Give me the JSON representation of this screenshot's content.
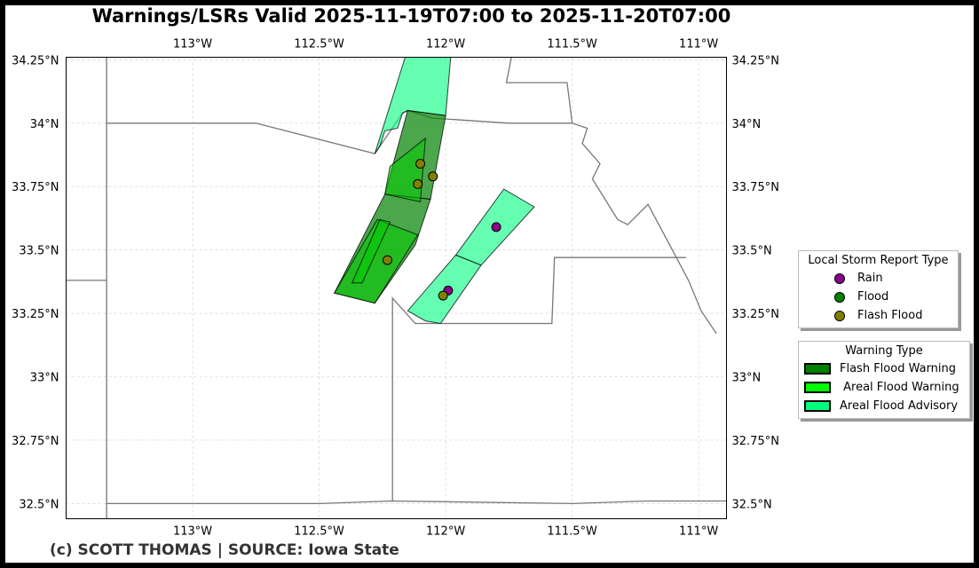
{
  "title": "Warnings/LSRs Valid 2025-11-19T07:00 to 2025-11-20T07:00",
  "credit": "(c) SCOTT THOMAS | SOURCE: Iowa State",
  "map": {
    "lon_ticks": [
      {
        "lon": -113.0,
        "label": "113°W"
      },
      {
        "lon": -112.5,
        "label": "112.5°W"
      },
      {
        "lon": -112.0,
        "label": "112°W"
      },
      {
        "lon": -111.5,
        "label": "111.5°W"
      },
      {
        "lon": -111.0,
        "label": "111°W"
      }
    ],
    "lat_ticks": [
      {
        "lat": 34.25,
        "label": "34.25°N"
      },
      {
        "lat": 34.0,
        "label": "34°N"
      },
      {
        "lat": 33.75,
        "label": "33.75°N"
      },
      {
        "lat": 33.5,
        "label": "33.5°N"
      },
      {
        "lat": 33.25,
        "label": "33.25°N"
      },
      {
        "lat": 33.0,
        "label": "33°N"
      },
      {
        "lat": 32.75,
        "label": "32.75°N"
      },
      {
        "lat": 32.5,
        "label": "32.5°N"
      }
    ],
    "extent": {
      "lon_min": -113.5,
      "lon_max": -110.89,
      "lat_min": 32.44,
      "lat_max": 34.26
    },
    "gridlines": true,
    "boundaries": [
      [
        [
          -113.34,
          34.26
        ],
        [
          -113.34,
          32.44
        ]
      ],
      [
        [
          -113.5,
          33.38
        ],
        [
          -113.34,
          33.38
        ]
      ],
      [
        [
          -113.34,
          34.0
        ],
        [
          -112.75,
          34.0
        ],
        [
          -112.28,
          33.88
        ],
        [
          -112.17,
          34.04
        ],
        [
          -112.15,
          34.05
        ],
        [
          -112.05,
          34.02
        ],
        [
          -111.75,
          34.0
        ],
        [
          -111.5,
          34.0
        ],
        [
          -111.44,
          33.98
        ],
        [
          -111.46,
          33.92
        ],
        [
          -111.39,
          33.84
        ],
        [
          -111.42,
          33.78
        ],
        [
          -111.32,
          33.62
        ],
        [
          -111.28,
          33.6
        ],
        [
          -111.2,
          33.68
        ],
        [
          -111.04,
          33.38
        ],
        [
          -110.99,
          33.26
        ],
        [
          -110.93,
          33.17
        ]
      ],
      [
        [
          -111.74,
          34.26
        ],
        [
          -111.76,
          34.16
        ],
        [
          -111.52,
          34.16
        ],
        [
          -111.51,
          34.08
        ],
        [
          -111.5,
          34.0
        ]
      ],
      [
        [
          -113.34,
          32.5
        ],
        [
          -112.5,
          32.5
        ],
        [
          -112.21,
          32.51
        ],
        [
          -111.5,
          32.5
        ],
        [
          -111.2,
          32.51
        ],
        [
          -110.89,
          32.51
        ]
      ],
      [
        [
          -112.21,
          32.51
        ],
        [
          -112.21,
          33.31
        ],
        [
          -112.12,
          33.21
        ],
        [
          -111.58,
          33.21
        ],
        [
          -111.57,
          33.47
        ],
        [
          -111.05,
          33.47
        ]
      ]
    ],
    "polygons": [
      {
        "type": "Areal Flood Advisory",
        "points": [
          [
            -112.16,
            34.26
          ],
          [
            -111.98,
            34.26
          ],
          [
            -112.0,
            34.03
          ],
          [
            -112.15,
            34.05
          ],
          [
            -112.17,
            34.04
          ],
          [
            -112.19,
            33.98
          ],
          [
            -112.24,
            33.97
          ],
          [
            -112.26,
            33.91
          ],
          [
            -112.28,
            33.88
          ]
        ]
      },
      {
        "type": "Flash Flood Warning",
        "points": [
          [
            -112.15,
            34.05
          ],
          [
            -112.0,
            34.03
          ],
          [
            -112.06,
            33.7
          ],
          [
            -112.24,
            33.72
          ]
        ]
      },
      {
        "type": "Flash Flood Warning",
        "points": [
          [
            -112.24,
            33.72
          ],
          [
            -112.06,
            33.7
          ],
          [
            -112.12,
            33.52
          ],
          [
            -112.28,
            33.29
          ],
          [
            -112.44,
            33.33
          ]
        ]
      },
      {
        "type": "Areal Flood Warning",
        "points": [
          [
            -112.22,
            33.83
          ],
          [
            -112.08,
            33.94
          ],
          [
            -112.1,
            33.69
          ],
          [
            -112.24,
            33.72
          ]
        ]
      },
      {
        "type": "Areal Flood Warning",
        "points": [
          [
            -112.27,
            33.62
          ],
          [
            -112.11,
            33.56
          ],
          [
            -112.28,
            33.29
          ],
          [
            -112.44,
            33.33
          ]
        ]
      },
      {
        "type": "Areal Flood Warning",
        "points": [
          [
            -112.26,
            33.62
          ],
          [
            -112.22,
            33.61
          ],
          [
            -112.33,
            33.37
          ],
          [
            -112.37,
            33.37
          ]
        ]
      },
      {
        "type": "Areal Flood Advisory",
        "points": [
          [
            -111.77,
            33.74
          ],
          [
            -111.65,
            33.67
          ],
          [
            -111.86,
            33.44
          ],
          [
            -111.96,
            33.48
          ]
        ]
      },
      {
        "type": "Areal Flood Advisory",
        "points": [
          [
            -111.96,
            33.48
          ],
          [
            -111.86,
            33.44
          ],
          [
            -112.02,
            33.21
          ],
          [
            -112.08,
            33.22
          ],
          [
            -112.15,
            33.26
          ]
        ]
      }
    ],
    "lsrs": [
      {
        "type": "Flash Flood",
        "lon": -112.1,
        "lat": 33.84
      },
      {
        "type": "Flash Flood",
        "lon": -112.05,
        "lat": 33.79
      },
      {
        "type": "Flash Flood",
        "lon": -112.11,
        "lat": 33.76
      },
      {
        "type": "Rain",
        "lon": -111.8,
        "lat": 33.59
      },
      {
        "type": "Flash Flood",
        "lon": -112.23,
        "lat": 33.46
      },
      {
        "type": "Rain",
        "lon": -111.99,
        "lat": 33.34
      },
      {
        "type": "Flash Flood",
        "lon": -112.01,
        "lat": 33.32
      }
    ]
  },
  "lsr_legend": {
    "title": "Local Storm Report Type",
    "items": [
      {
        "label": "Rain",
        "color": "#8b008b"
      },
      {
        "label": "Flood",
        "color": "#008000"
      },
      {
        "label": "Flash Flood",
        "color": "#808000"
      }
    ]
  },
  "warning_legend": {
    "title": "Warning Type",
    "items": [
      {
        "label": "Flash Flood Warning",
        "color": "#008000"
      },
      {
        "label": " Areal Flood Warning",
        "color": "#00ff00"
      },
      {
        "label": "Areal Flood Advisory",
        "color": "#00ff7f"
      }
    ]
  }
}
